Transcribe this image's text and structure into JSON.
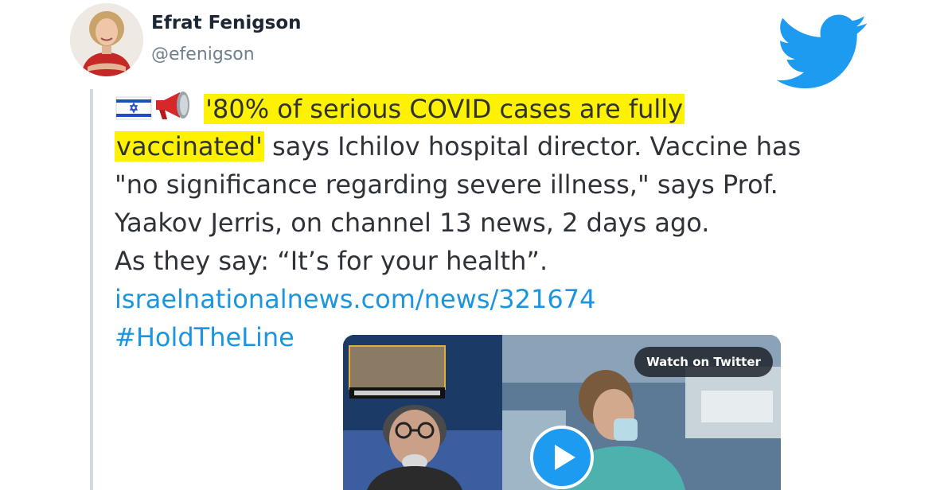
{
  "author": {
    "display_name": "Efrat Fenigson",
    "handle": "@efenigson"
  },
  "tweet": {
    "highlight_1": "'80% of serious COVID cases are fully",
    "highlight_2": "vaccinated'",
    "line_2_rest": " says Ichilov hospital director. Vaccine has",
    "line_3": "\"no significance regarding severe illness,\" says Prof.",
    "line_4": "Yaakov Jerris, on channel 13 news, 2 days ago.",
    "line_5": "As they say: “It’s for your health”.",
    "link": "israelnationalnews.com/news/321674",
    "hashtag": "#HoldTheLine"
  },
  "media": {
    "watch_label": "Watch on Twitter"
  },
  "icons": {
    "brand": "twitter-bird-icon",
    "flag": "israel-flag-icon",
    "megaphone": "megaphone-icon",
    "play": "play-icon"
  },
  "colors": {
    "twitter_blue": "#1d9bf0",
    "link_blue": "#1b95e0",
    "highlight_yellow": "#fff200",
    "handle_gray": "#6e7f8e",
    "thread_line": "#cfd9e0"
  }
}
